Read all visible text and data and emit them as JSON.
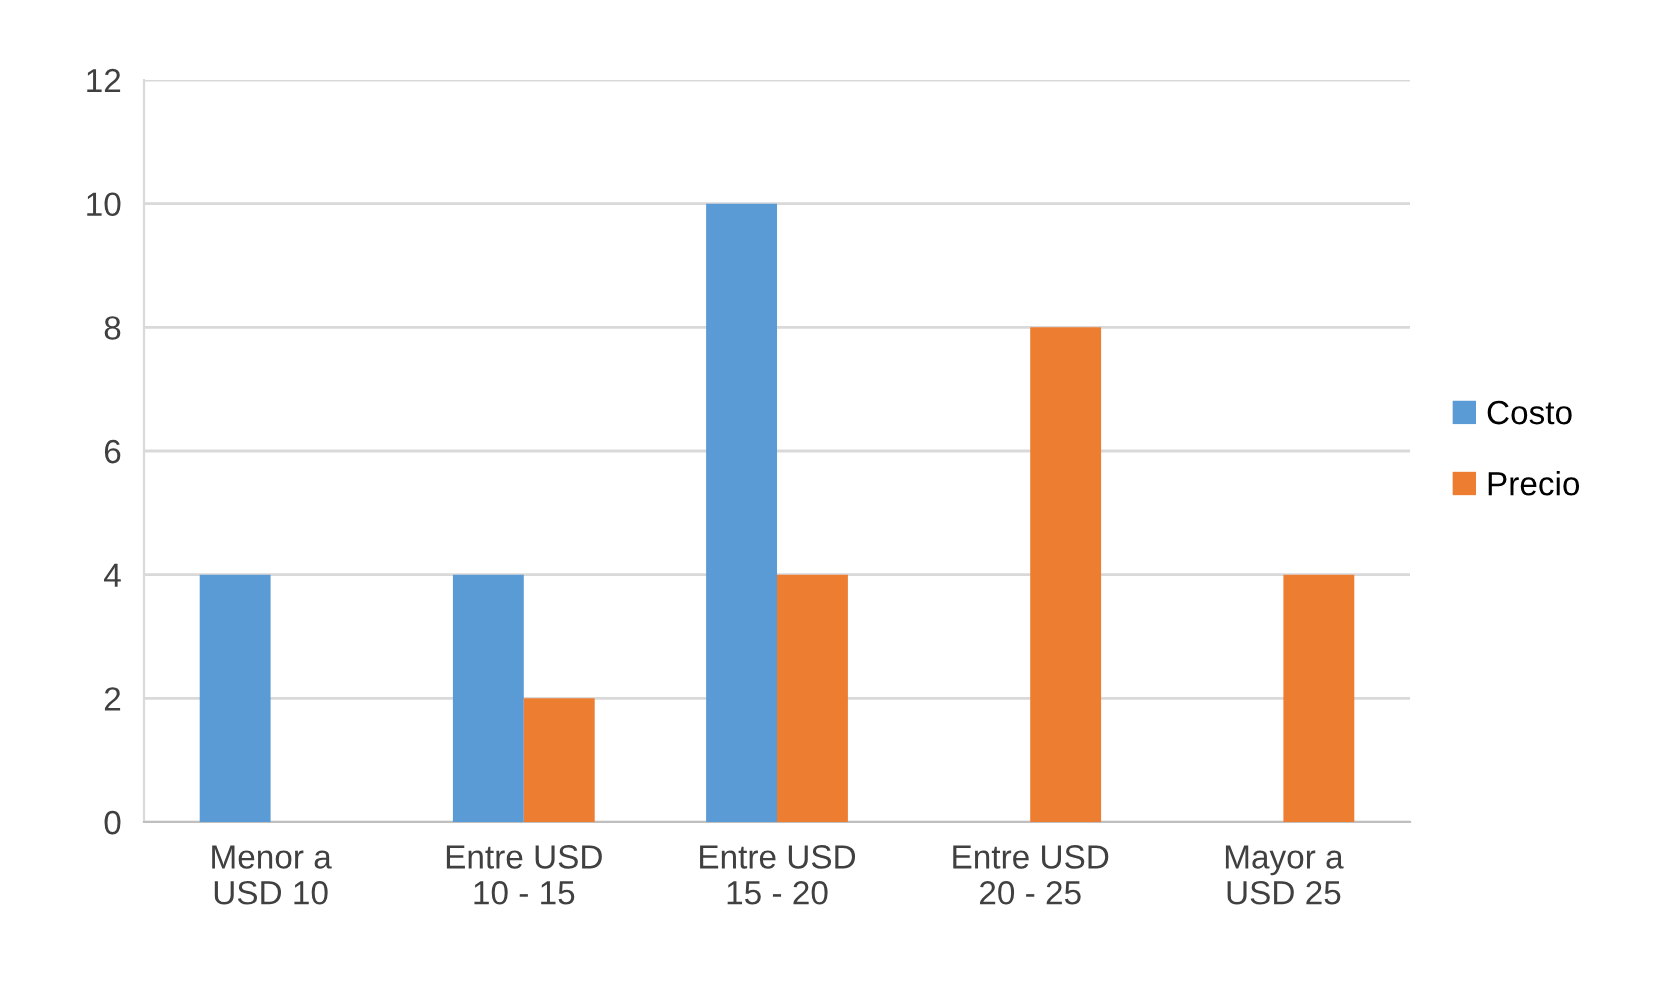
{
  "chart_data": {
    "type": "bar",
    "categories": [
      "Menor a\nUSD 10",
      "Entre USD\n10 - 15",
      "Entre USD\n15 - 20",
      "Entre USD\n20 - 25",
      "Mayor a\nUSD 25"
    ],
    "series": [
      {
        "name": "Costo",
        "color": "#5b9bd5",
        "values": [
          4,
          4,
          10,
          0,
          0
        ]
      },
      {
        "name": "Precio",
        "color": "#ed7d31",
        "values": [
          0,
          2,
          4,
          8,
          4
        ]
      }
    ],
    "ylim": [
      0,
      12
    ],
    "yticks": [
      0,
      2,
      4,
      6,
      8,
      10,
      12
    ],
    "grid": "y",
    "legend": "right"
  }
}
